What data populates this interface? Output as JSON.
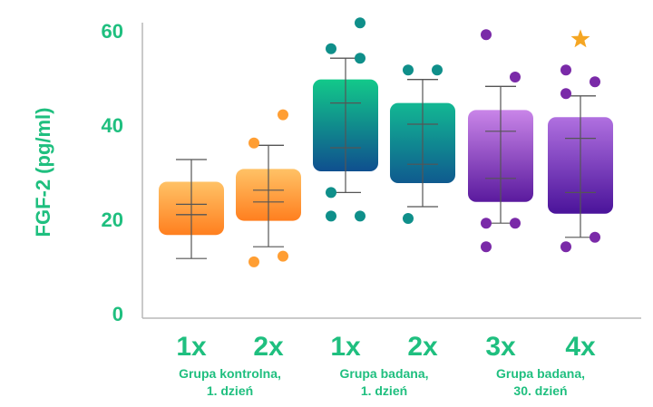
{
  "chart_data": {
    "type": "box",
    "ylabel": "FGF-2 (pg/ml)",
    "ylim": [
      0,
      62
    ],
    "yticks": [
      0,
      20,
      40,
      60
    ],
    "grid": false,
    "categories": [
      "1x",
      "2x",
      "1x",
      "2x",
      "3x",
      "4x"
    ],
    "groups": [
      {
        "label_lines": [
          "Grupa kontrolna,",
          "1. dzień"
        ],
        "members": [
          0,
          1
        ]
      },
      {
        "label_lines": [
          "Grupa badana,",
          "1. dzień"
        ],
        "members": [
          2,
          3
        ]
      },
      {
        "label_lines": [
          "Grupa badana,",
          "30. dzień"
        ],
        "members": [
          4,
          5
        ]
      }
    ],
    "boxes": [
      {
        "whisker_low": 11.5,
        "p10": 20.8,
        "q1": 16.5,
        "median": 23.0,
        "q3": 27.8,
        "p90": 20.8,
        "whisker_high": 32.5,
        "points": [],
        "star": null
      },
      {
        "whisker_low": 14.0,
        "p10": 23.5,
        "q1": 19.5,
        "median": 26.0,
        "q3": 30.5,
        "p90": 35.5,
        "whisker_high": 35.5,
        "points": [
          10.8,
          12.0,
          36.0,
          42.0
        ],
        "star": null
      },
      {
        "whisker_low": 25.5,
        "p10": 35.0,
        "q1": 30.0,
        "median": 44.5,
        "q3": 49.5,
        "p90": 54.0,
        "whisker_high": 54.0,
        "points": [
          20.5,
          20.5,
          25.5,
          54.0,
          56.0,
          61.5
        ],
        "star": null
      },
      {
        "whisker_low": 22.5,
        "p10": 31.5,
        "q1": 27.5,
        "median": 40.0,
        "q3": 44.5,
        "p90": 49.5,
        "whisker_high": 49.5,
        "points": [
          20.0,
          51.5,
          51.5
        ],
        "star": null
      },
      {
        "whisker_low": 19.0,
        "p10": 28.5,
        "q1": 23.5,
        "median": 38.5,
        "q3": 43.0,
        "p90": 48.0,
        "whisker_high": 48.0,
        "points": [
          14.0,
          19.0,
          19.0,
          50.0,
          59.0
        ],
        "star": null
      },
      {
        "whisker_low": 16.0,
        "p10": 25.5,
        "q1": 21.0,
        "median": 37.0,
        "q3": 41.5,
        "p90": 46.0,
        "whisker_high": 46.0,
        "points": [
          14.0,
          16.0,
          46.5,
          49.0,
          51.5
        ],
        "star": 58.0
      }
    ],
    "colors": {
      "axis_text": "#1fbf7f",
      "axis_line": "#b8b8b8",
      "whisker": "#555555",
      "star": "#f5a623",
      "box_gradients": [
        {
          "top": "#ffc266",
          "bottom": "#ff7f1f",
          "point": "#ff9e33"
        },
        {
          "top": "#ffc266",
          "bottom": "#ff7f1f",
          "point": "#ff9e33"
        },
        {
          "top": "#12c98a",
          "bottom": "#0f4f8f",
          "point": "#0f8f8a"
        },
        {
          "top": "#12b893",
          "bottom": "#0f5a8f",
          "point": "#0f8f8a"
        },
        {
          "top": "#c985e8",
          "bottom": "#5a1a9e",
          "point": "#7a2aa8"
        },
        {
          "top": "#b070e0",
          "bottom": "#4a139a",
          "point": "#7a2aa8"
        }
      ]
    }
  }
}
